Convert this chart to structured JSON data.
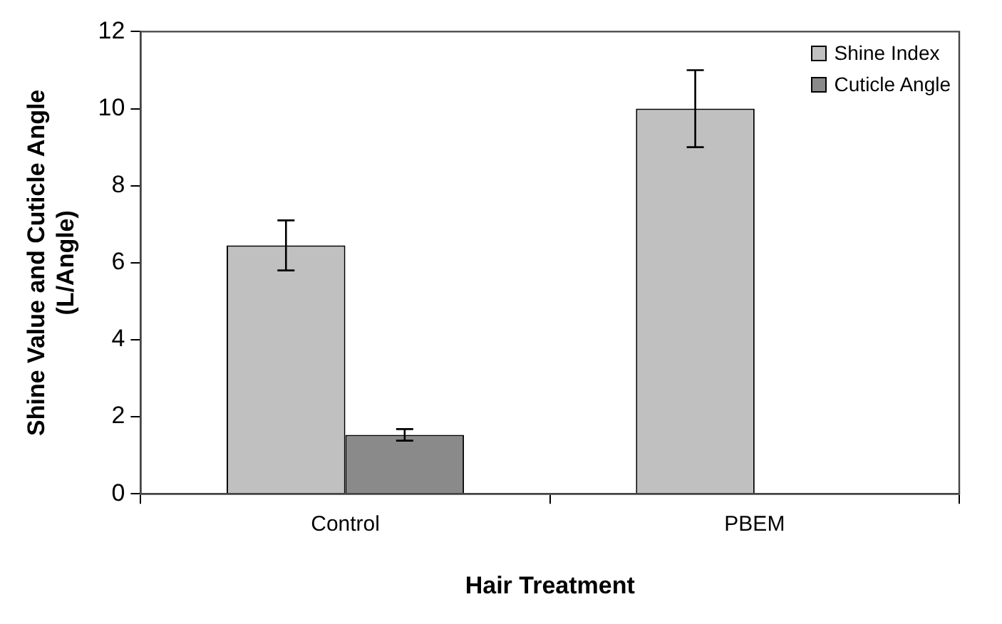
{
  "chart_data": {
    "type": "bar",
    "xlabel": "Hair Treatment",
    "ylabel": "Shine Value and Cuticle Angle\n(L/Angle)",
    "categories": [
      "Control",
      "PBEM"
    ],
    "series": [
      {
        "name": "Shine Index",
        "color": "#c0c0c0",
        "values": [
          6.45,
          10
        ],
        "errors": [
          0.65,
          1
        ]
      },
      {
        "name": "Cuticle Angle",
        "color": "#8a8a8a",
        "values": [
          1.53,
          0.02
        ],
        "errors": [
          0.15,
          null
        ]
      }
    ],
    "ylim": [
      0,
      12
    ],
    "yticks": [
      0,
      2,
      4,
      6,
      8,
      10,
      12
    ],
    "grid": false,
    "legend": "top right"
  }
}
